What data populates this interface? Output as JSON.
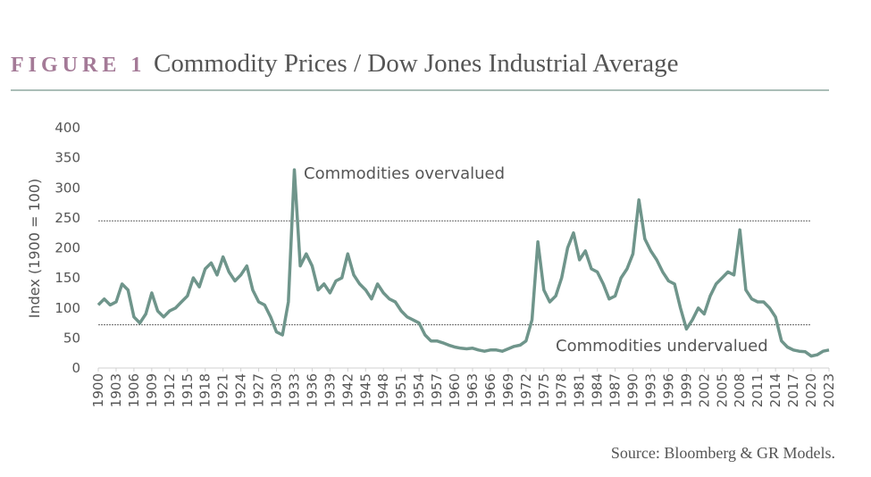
{
  "chart_data": {
    "type": "line",
    "figure_label": "FIGURE 1",
    "title": "Commodity Prices / Dow Jones Industrial Average",
    "ylabel": "Index (1900 = 100)",
    "source": "Source: Bloomberg & GR Models.",
    "annotations": [
      "Commodities overvalued",
      "Commodities undervalued"
    ],
    "reference_lines": [
      245,
      72
    ],
    "color": "#6f958b",
    "x": [
      1900,
      1901,
      1902,
      1903,
      1904,
      1905,
      1906,
      1907,
      1908,
      1909,
      1910,
      1911,
      1912,
      1913,
      1914,
      1915,
      1916,
      1917,
      1918,
      1919,
      1920,
      1921,
      1922,
      1923,
      1924,
      1925,
      1926,
      1927,
      1928,
      1929,
      1930,
      1931,
      1932,
      1933,
      1934,
      1935,
      1936,
      1937,
      1938,
      1939,
      1940,
      1941,
      1942,
      1943,
      1944,
      1945,
      1946,
      1947,
      1948,
      1949,
      1950,
      1951,
      1952,
      1953,
      1954,
      1955,
      1956,
      1957,
      1958,
      1959,
      1960,
      1961,
      1962,
      1963,
      1964,
      1965,
      1966,
      1967,
      1968,
      1969,
      1970,
      1971,
      1972,
      1973,
      1974,
      1975,
      1976,
      1977,
      1978,
      1979,
      1980,
      1981,
      1982,
      1983,
      1984,
      1985,
      1986,
      1987,
      1988,
      1989,
      1990,
      1991,
      1992,
      1993,
      1994,
      1995,
      1996,
      1997,
      1998,
      1999,
      2000,
      2001,
      2002,
      2003,
      2004,
      2005,
      2006,
      2007,
      2008,
      2009,
      2010,
      2011,
      2012,
      2013,
      2014,
      2015,
      2016,
      2017,
      2018,
      2019,
      2020,
      2021,
      2022,
      2023
    ],
    "values": [
      105,
      115,
      105,
      110,
      140,
      130,
      85,
      75,
      90,
      125,
      95,
      85,
      95,
      100,
      110,
      120,
      150,
      135,
      165,
      175,
      155,
      185,
      160,
      145,
      155,
      170,
      130,
      110,
      105,
      85,
      60,
      55,
      110,
      330,
      170,
      190,
      170,
      130,
      140,
      125,
      145,
      150,
      190,
      155,
      140,
      130,
      115,
      140,
      125,
      115,
      110,
      95,
      85,
      80,
      75,
      55,
      45,
      45,
      42,
      38,
      35,
      33,
      32,
      33,
      30,
      28,
      30,
      30,
      28,
      32,
      36,
      38,
      45,
      80,
      210,
      130,
      110,
      120,
      150,
      200,
      225,
      180,
      195,
      165,
      160,
      140,
      115,
      120,
      150,
      165,
      190,
      280,
      215,
      195,
      180,
      160,
      145,
      140,
      100,
      65,
      80,
      100,
      90,
      120,
      140,
      150,
      160,
      155,
      230,
      130,
      115,
      110,
      110,
      100,
      85,
      45,
      35,
      30,
      28,
      27,
      20,
      22,
      28,
      30
    ],
    "xlim": [
      1900,
      2023
    ],
    "xticks": [
      1900,
      1903,
      1906,
      1909,
      1912,
      1915,
      1918,
      1921,
      1924,
      1927,
      1930,
      1933,
      1936,
      1939,
      1942,
      1945,
      1948,
      1951,
      1954,
      1957,
      1960,
      1963,
      1966,
      1969,
      1972,
      1975,
      1978,
      1981,
      1984,
      1987,
      1990,
      1993,
      1996,
      1999,
      2002,
      2005,
      2008,
      2011,
      2014,
      2017,
      2020,
      2023
    ],
    "ylim": [
      0,
      400
    ],
    "yticks": [
      0,
      50,
      100,
      150,
      200,
      250,
      300,
      350,
      400
    ]
  }
}
